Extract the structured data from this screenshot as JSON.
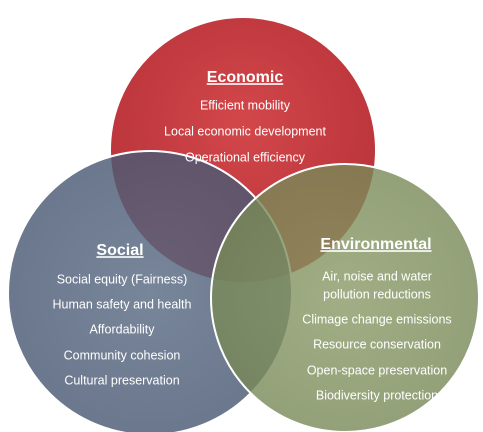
{
  "diagram": {
    "sets": [
      {
        "title": "Economic",
        "items": [
          "Efficient mobility",
          "Local economic development",
          "Operational efficiency"
        ]
      },
      {
        "title": "Social",
        "items": [
          "Social equity (Fairness)",
          "Human safety and health",
          "Affordability",
          "Community cohesion",
          "Cultural preservation"
        ]
      },
      {
        "title": "Environmental",
        "items": [
          "Air, noise and water",
          "pollution reductions",
          "Climage change emissions",
          "Resource conservation",
          "Open-space preservation",
          "Biodiversity protection"
        ]
      }
    ]
  }
}
